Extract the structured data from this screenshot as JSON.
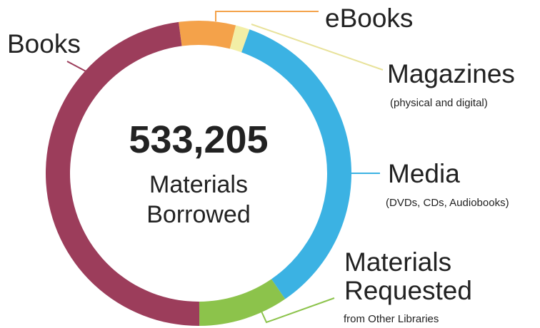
{
  "chart_data": {
    "type": "donut",
    "title": "533,205",
    "subtitle": "Materials Borrowed",
    "categories": [
      "eBooks",
      "Magazines",
      "Media",
      "Materials Requested",
      "Books"
    ],
    "notes": [
      null,
      "(physical and digital)",
      "(DVDs, CDs, Audiobooks)",
      "from Other Libraries",
      null
    ],
    "values": [
      6,
      1.5,
      35,
      9.5,
      48
    ],
    "colors": [
      "#f4a24a",
      "#f2eea6",
      "#3bb2e3",
      "#8cc34b",
      "#9c3d5b"
    ]
  }
}
